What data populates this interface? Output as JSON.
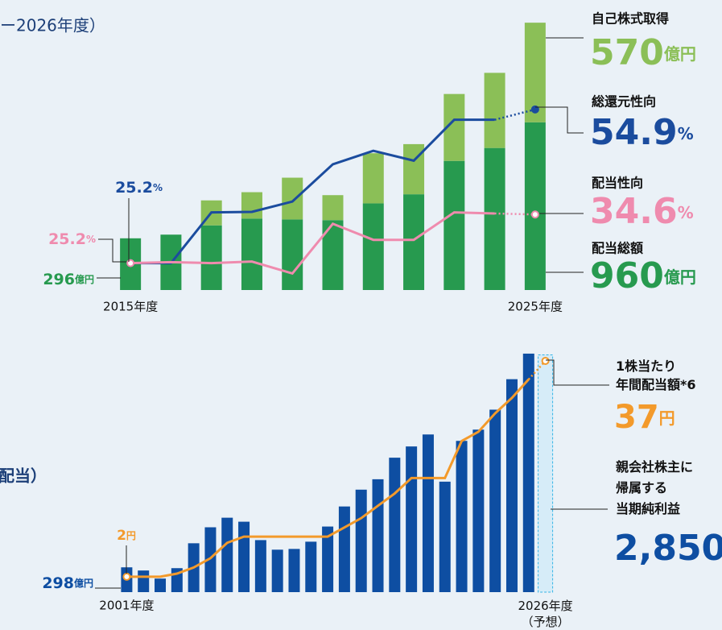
{
  "texts": [
    "ー2026年度）",
    "配当）"
  ],
  "chart_data": [
    {
      "type": "bar",
      "stacked": true,
      "categories": [
        "2015年度",
        null,
        null,
        null,
        null,
        null,
        null,
        null,
        null,
        null,
        "2025年度"
      ],
      "ylim": [
        0,
        1540
      ],
      "y2lim": [
        20,
        72
      ],
      "series": [
        {
          "name": "配当総額",
          "color": "#279a4f",
          "values": [
            296,
            317,
            370,
            409,
            404,
            400,
            496,
            548,
            739,
            813,
            960
          ],
          "value_labels": [
            "296億円",
            null,
            null,
            null,
            null,
            null,
            null,
            null,
            null,
            null,
            "960億円"
          ]
        },
        {
          "name": "自己株式取得",
          "color": "#8bbf57",
          "values": [
            null,
            null,
            143,
            151,
            239,
            143,
            287,
            287,
            383,
            430,
            570
          ],
          "value_labels": [
            null,
            null,
            null,
            null,
            null,
            null,
            null,
            null,
            null,
            null,
            "570億円"
          ]
        },
        {
          "name": "総還元性向",
          "color": "#1b4c9e",
          "type": "line",
          "axis": "y2",
          "values": [
            25.2,
            25.2,
            35.0,
            35.1,
            37.1,
            44.3,
            46.9,
            45.0,
            52.9,
            52.9,
            54.9
          ],
          "value_labels": [
            "25.2%",
            null,
            null,
            null,
            null,
            null,
            null,
            null,
            null,
            null,
            "54.9%"
          ]
        },
        {
          "name": "配当性向",
          "color": "#ef8bae",
          "type": "line",
          "axis": "y2",
          "values": [
            25.2,
            25.4,
            25.2,
            25.5,
            23.2,
            32.8,
            29.7,
            29.7,
            35.0,
            34.8,
            34.6
          ],
          "value_labels": [
            "25.2%",
            null,
            null,
            null,
            null,
            null,
            null,
            null,
            null,
            null,
            "34.6%"
          ]
        }
      ]
    },
    {
      "type": "bar",
      "categories": [
        "2001年度",
        null,
        null,
        null,
        null,
        null,
        null,
        null,
        null,
        null,
        null,
        null,
        null,
        null,
        null,
        null,
        null,
        null,
        null,
        null,
        null,
        null,
        null,
        null,
        null,
        "2026年度\n（予想）"
      ],
      "ylim": [
        0,
        3000
      ],
      "y2lim": [
        -0.5,
        40
      ],
      "series": [
        {
          "name": "親会社株主に\n帰属する\n当期純利益",
          "color": "#0e4ea2",
          "values": [
            298,
            260,
            163,
            288,
            587,
            779,
            894,
            846,
            625,
            510,
            519,
            606,
            788,
            1029,
            1231,
            1356,
            1615,
            1750,
            1894,
            1327,
            1817,
            1952,
            2192,
            2558,
            2865,
            2850
          ],
          "value_labels": [
            "298億円",
            null,
            null,
            null,
            null,
            null,
            null,
            null,
            null,
            null,
            null,
            null,
            null,
            null,
            null,
            null,
            null,
            null,
            null,
            null,
            null,
            null,
            null,
            null,
            null,
            "2,850"
          ]
        },
        {
          "name": "1株当たり\n年間配当額*6",
          "color": "#f39a2b",
          "type": "line",
          "axis": "y2",
          "values": [
            2,
            2,
            2,
            2.5,
            3.5,
            5,
            7.5,
            8.5,
            8.5,
            8.5,
            8.5,
            8.5,
            8.5,
            10,
            11.5,
            13.5,
            15.5,
            18,
            18,
            18,
            24,
            25.5,
            28.5,
            31,
            34,
            37
          ],
          "value_labels": [
            "2円",
            null,
            null,
            null,
            null,
            null,
            null,
            null,
            null,
            null,
            null,
            null,
            null,
            null,
            null,
            null,
            null,
            null,
            null,
            null,
            null,
            null,
            null,
            null,
            null,
            "37円"
          ]
        }
      ]
    }
  ]
}
